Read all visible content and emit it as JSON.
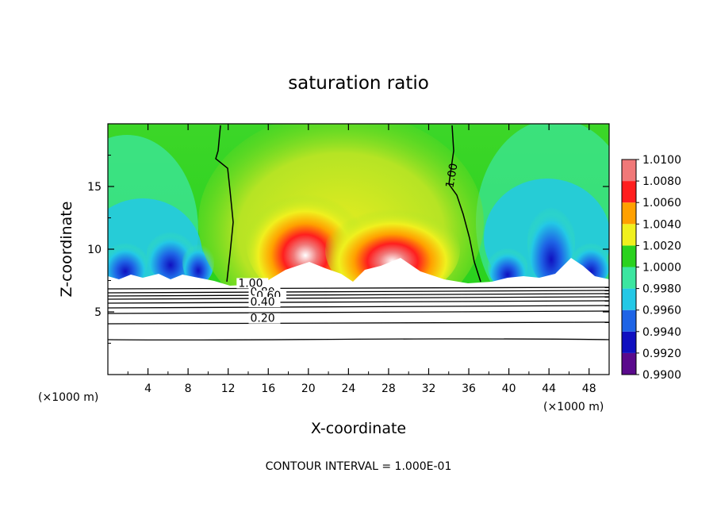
{
  "chart_data": {
    "type": "heatmap",
    "title": "saturation ratio",
    "xlabel": "X-coordinate",
    "ylabel": "Z-coordinate",
    "x_unit_label": "(×1000 m)",
    "xlim": [
      0,
      50
    ],
    "ylim": [
      0,
      20
    ],
    "x_ticks": [
      4,
      8,
      12,
      16,
      20,
      24,
      28,
      32,
      36,
      40,
      44,
      48
    ],
    "y_ticks": [
      5,
      10,
      15
    ],
    "colorbar": {
      "levels": [
        "0.9900",
        "0.9920",
        "0.9940",
        "0.9960",
        "0.9980",
        "1.0000",
        "1.0020",
        "1.0040",
        "1.0060",
        "1.0080",
        "1.0100"
      ],
      "colors": [
        "#5a0a8c",
        "#1010c0",
        "#1e64e6",
        "#23c8e6",
        "#3ce6a0",
        "#2ad21e",
        "#f0f01e",
        "#ffa000",
        "#ff1e1e",
        "#f07878"
      ]
    },
    "contours": [
      {
        "label": "1.00",
        "x_label": 13,
        "z_label": 7.0
      },
      {
        "label": "0.80",
        "x_label": 14.2,
        "z_label": 6.3
      },
      {
        "label": "0.60",
        "x_label": 14.8,
        "z_label": 6.0
      },
      {
        "label": "0.40",
        "x_label": 14.2,
        "z_label": 5.5
      },
      {
        "label": "0.20",
        "x_label": 14.2,
        "z_label": 4.2
      }
    ],
    "upper_contour_label": "1.00",
    "footer": "CONTOUR INTERVAL = 1.000E-01"
  }
}
